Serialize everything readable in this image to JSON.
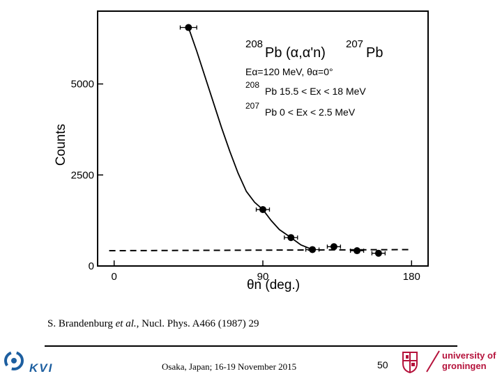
{
  "chart_data": {
    "type": "scatter",
    "xlabel": "θn (deg.)",
    "ylabel": "Counts",
    "xlim": [
      -10,
      190
    ],
    "ylim": [
      0,
      7000
    ],
    "x_ticks": [
      0,
      90,
      180
    ],
    "y_ticks": [
      0,
      2500,
      5000
    ],
    "tick_labels_x": [
      "0",
      "90",
      "180"
    ],
    "tick_labels_y": [
      "0",
      "2500",
      "5000"
    ],
    "series": [
      {
        "name": "data",
        "x": [
          45,
          90,
          107,
          120,
          133,
          147,
          160
        ],
        "y": [
          6550,
          1550,
          780,
          450,
          530,
          420,
          350
        ],
        "xerr": [
          5,
          4,
          4,
          4,
          4,
          4,
          4
        ]
      }
    ],
    "fit_curve": {
      "x": [
        45,
        50,
        55,
        60,
        65,
        70,
        75,
        80,
        85,
        90,
        95,
        100,
        107,
        113,
        120
      ],
      "y": [
        6550,
        5900,
        5200,
        4500,
        3800,
        3150,
        2550,
        2050,
        1750,
        1550,
        1250,
        1000,
        780,
        580,
        450
      ]
    },
    "background": {
      "x": [
        -3,
        180
      ],
      "y": [
        420,
        450
      ]
    },
    "annotation": {
      "reaction_a": "208",
      "reaction_b": "Pb (α,α'n)",
      "reaction_c": "207",
      "reaction_d": "Pb",
      "energy": "Eα=120 MeV,  θα=0°",
      "line3_iso": "208",
      "line3_text": "Pb 15.5 < Ex < 18 MeV",
      "line4_iso": "207",
      "line4_text": "Pb  0   < Ex < 2.5 MeV"
    }
  },
  "citation": {
    "authors": "S. Brandenburg",
    "etal": "et al.",
    "ref": ", Nucl. Phys. A466 (1987) 29"
  },
  "footer": {
    "venue": "Osaka, Japan; 16-19 November 2015",
    "page": "50",
    "left_logo_text": "KVI",
    "right_logo_line1": "university of",
    "right_logo_line2": "groningen",
    "brand_color": "#b5123b",
    "kvi_color": "#1d5fa0"
  }
}
